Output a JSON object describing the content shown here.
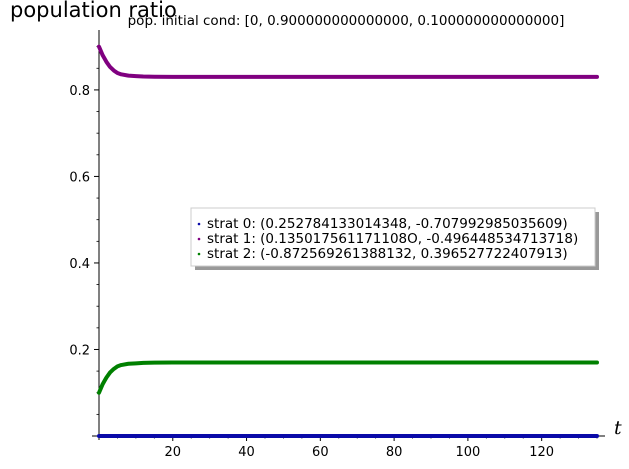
{
  "chart_data": {
    "type": "line",
    "title": "pop. initial cond: [0, 0.900000000000000, 0.100000000000000]",
    "ylabel": "population ratio",
    "xlabel": "t",
    "xlim": [
      0,
      135
    ],
    "ylim": [
      0,
      0.92
    ],
    "x_ticks": [
      20,
      40,
      60,
      80,
      100,
      120
    ],
    "x_tick_labels": [
      "20",
      "40",
      "60",
      "80",
      "100",
      "120"
    ],
    "y_ticks": [
      0.2,
      0.4,
      0.6,
      0.8
    ],
    "y_tick_labels": [
      "0.2",
      "0.4",
      "0.6",
      "0.8"
    ],
    "grid": false,
    "legend_position": "center-right",
    "series": [
      {
        "name": "strat 0: (0.252784133014348, -0.707992985035609)",
        "color": "#0a0aa8",
        "x": [
          0,
          135
        ],
        "y": [
          0.0,
          0.0
        ]
      },
      {
        "name": "strat 1: (0.135017561171108O, -0.496448534713718)",
        "color": "#800080",
        "x": [
          0,
          1,
          2,
          3,
          4,
          5,
          6,
          8,
          10,
          12,
          15,
          20,
          30,
          60,
          100,
          135
        ],
        "y": [
          0.9,
          0.88,
          0.865,
          0.853,
          0.845,
          0.839,
          0.836,
          0.833,
          0.832,
          0.831,
          0.8305,
          0.83,
          0.83,
          0.83,
          0.83,
          0.83
        ]
      },
      {
        "name": "strat 2: (-0.872569261388132, 0.396527722407913)",
        "color": "#008000",
        "x": [
          0,
          1,
          2,
          3,
          4,
          5,
          6,
          8,
          10,
          12,
          15,
          20,
          30,
          60,
          100,
          135
        ],
        "y": [
          0.1,
          0.12,
          0.135,
          0.147,
          0.155,
          0.161,
          0.164,
          0.167,
          0.168,
          0.169,
          0.1695,
          0.17,
          0.17,
          0.17,
          0.17,
          0.17
        ]
      }
    ]
  }
}
